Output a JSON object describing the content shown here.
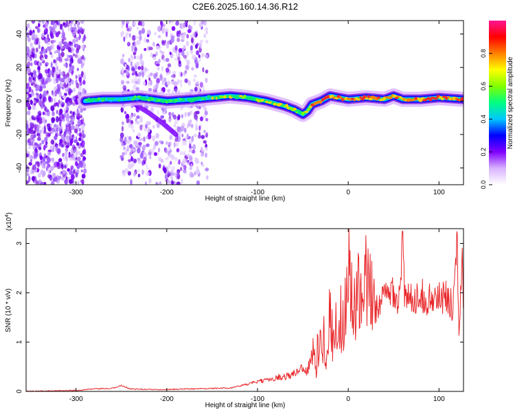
{
  "title": "C2E6.2025.160.14.36.R12",
  "chart_data": [
    {
      "type": "heatmap",
      "xlabel": "Height of straight line (km)",
      "ylabel": "Frequency (Hz)",
      "xlim": [
        -355,
        127
      ],
      "ylim": [
        -50,
        48
      ],
      "xticks": [
        -300,
        -200,
        -100,
        0,
        100
      ],
      "yticks": [
        -40,
        -20,
        0,
        20,
        40
      ],
      "colorbar": {
        "label": "Normalized spectral amplitude",
        "range": [
          0,
          1
        ],
        "ticks": [
          0,
          0.2,
          0.4,
          0.6,
          0.8
        ],
        "tick_labels": [
          "0.0",
          "0.2",
          "0.4",
          "0.6",
          "0.8"
        ],
        "colormap": [
          "#ffffff",
          "#d9b3ff",
          "#8000ff",
          "#0000ff",
          "#00c8ff",
          "#00ff80",
          "#80ff00",
          "#ffff00",
          "#ff8000",
          "#ff0000",
          "#ff1493"
        ]
      },
      "features": {
        "noise_regions_x": [
          [
            -355,
            -290
          ],
          [
            -250,
            -155
          ]
        ],
        "signal_trace": {
          "x": [
            -290,
            -270,
            -250,
            -230,
            -200,
            -170,
            -150,
            -130,
            -110,
            -90,
            -70,
            -60,
            -50,
            -45,
            -40,
            -30,
            -20,
            -10,
            0,
            20,
            40,
            50,
            60,
            80,
            100,
            127
          ],
          "y": [
            0,
            1,
            1,
            2,
            0,
            1,
            2,
            3,
            2,
            0,
            -3,
            -5,
            -8,
            -6,
            -2,
            0,
            3,
            2,
            1,
            2,
            1,
            3,
            1,
            1,
            2,
            1
          ]
        },
        "secondary_trace": {
          "x": [
            -235,
            -220,
            -205,
            -190
          ],
          "y": [
            -2,
            -7,
            -13,
            -20
          ]
        }
      }
    },
    {
      "type": "line",
      "xlabel": "Height of straight line (km)",
      "ylabel": "SNR (10 * v/v)",
      "y_multiplier_label": "(x10",
      "y_multiplier_exp": "4",
      "y_multiplier_close": ")",
      "xlim": [
        -355,
        127
      ],
      "ylim": [
        0,
        3.3
      ],
      "xticks": [
        -300,
        -200,
        -100,
        0,
        100
      ],
      "yticks": [
        0,
        1,
        2,
        3
      ],
      "series": [
        {
          "color": "#e8282b",
          "x": [
            -355,
            -320,
            -300,
            -280,
            -260,
            -250,
            -240,
            -220,
            -200,
            -180,
            -150,
            -130,
            -110,
            -100,
            -90,
            -80,
            -70,
            -60,
            -50,
            -45,
            -40,
            -35,
            -30,
            -25,
            -20,
            -15,
            -10,
            -5,
            0,
            5,
            10,
            15,
            20,
            25,
            30,
            40,
            50,
            55,
            60,
            62,
            65,
            70,
            80,
            90,
            100,
            110,
            115,
            120,
            122,
            125,
            127
          ],
          "y": [
            0.0,
            0.01,
            0.02,
            0.05,
            0.06,
            0.12,
            0.05,
            0.04,
            0.04,
            0.05,
            0.06,
            0.07,
            0.15,
            0.2,
            0.22,
            0.28,
            0.3,
            0.35,
            0.5,
            0.4,
            0.75,
            0.6,
            1.3,
            0.9,
            1.5,
            1.0,
            1.7,
            1.2,
            2.95,
            1.4,
            2.05,
            1.5,
            2.3,
            1.8,
            1.7,
            1.9,
            2.1,
            1.75,
            3.05,
            1.9,
            1.85,
            1.9,
            1.95,
            1.85,
            1.9,
            1.9,
            1.7,
            3.3,
            1.2,
            2.8,
            1.9
          ]
        }
      ]
    }
  ]
}
